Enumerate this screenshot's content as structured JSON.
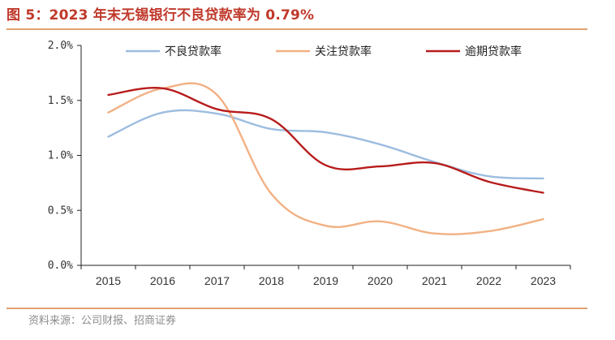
{
  "title": "图 5：2023 年末无锡银行不良贷款率为 0.79%",
  "source": "资料来源：公司财报、招商证券",
  "colors": {
    "npl": "#9dbde0",
    "special": "#f2b184",
    "overdue": "#b81c1c",
    "accent": "#e0a070"
  },
  "chart_data": {
    "type": "line",
    "categories": [
      "2015",
      "2016",
      "2017",
      "2018",
      "2019",
      "2020",
      "2021",
      "2022",
      "2023"
    ],
    "ylim": [
      0,
      2.0
    ],
    "yticks": [
      "0.0%",
      "0.5%",
      "1.0%",
      "1.5%",
      "2.0%"
    ],
    "ytick_values": [
      0,
      0.5,
      1.0,
      1.5,
      2.0
    ],
    "grid": false,
    "legend": "top",
    "series": [
      {
        "name": "不良贷款率",
        "values": [
          1.17,
          1.39,
          1.38,
          1.24,
          1.21,
          1.1,
          0.94,
          0.81,
          0.79
        ]
      },
      {
        "name": "关注贷款率",
        "values": [
          1.39,
          1.61,
          1.55,
          0.65,
          0.36,
          0.4,
          0.29,
          0.31,
          0.42
        ]
      },
      {
        "name": "逾期贷款率",
        "values": [
          1.55,
          1.61,
          1.42,
          1.33,
          0.91,
          0.9,
          0.93,
          0.76,
          0.66
        ]
      }
    ]
  }
}
